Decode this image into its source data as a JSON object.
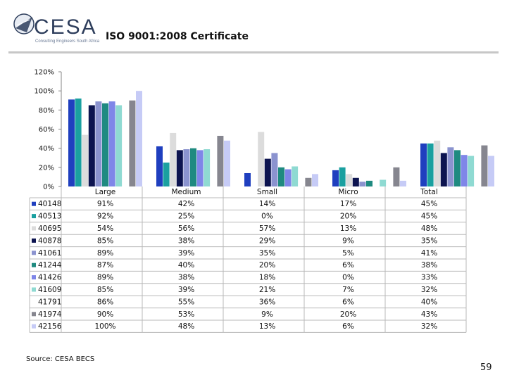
{
  "header": {
    "logo_text": "CESA",
    "logo_subtext": "Consulting Engineers South Africa",
    "title": "ISO 9001:2008 Certificate"
  },
  "footer": {
    "source": "Source: CESA BECS",
    "page_number": "59"
  },
  "chart_data": {
    "type": "bar",
    "title": "ISO 9001:2008 Certificate",
    "categories": [
      "Large",
      "Medium",
      "Small",
      "Micro",
      "Total"
    ],
    "ylim": [
      0,
      120
    ],
    "yticks": [
      "0%",
      "20%",
      "40%",
      "60%",
      "80%",
      "100%",
      "120%"
    ],
    "ytick_values": [
      0,
      20,
      40,
      60,
      80,
      100,
      120
    ],
    "grid": false,
    "legend_position": "table-left",
    "series": [
      {
        "name": "40148",
        "color": "#1f3fbf",
        "values": [
          91,
          42,
          14,
          17,
          45
        ],
        "labels": [
          "91%",
          "42%",
          "14%",
          "17%",
          "45%"
        ]
      },
      {
        "name": "40513",
        "color": "#1aa0a0",
        "values": [
          92,
          25,
          0,
          20,
          45
        ],
        "labels": [
          "92%",
          "25%",
          "0%",
          "20%",
          "45%"
        ]
      },
      {
        "name": "40695",
        "color": "#dcdcdc",
        "values": [
          54,
          56,
          57,
          13,
          48
        ],
        "labels": [
          "54%",
          "56%",
          "57%",
          "13%",
          "48%"
        ]
      },
      {
        "name": "40878",
        "color": "#0d1450",
        "values": [
          85,
          38,
          29,
          9,
          35
        ],
        "labels": [
          "85%",
          "38%",
          "29%",
          "9%",
          "35%"
        ]
      },
      {
        "name": "41061",
        "color": "#8b93cf",
        "values": [
          89,
          39,
          35,
          5,
          41
        ],
        "labels": [
          "89%",
          "39%",
          "35%",
          "5%",
          "41%"
        ]
      },
      {
        "name": "41244",
        "color": "#1f8a80",
        "values": [
          87,
          40,
          20,
          6,
          38
        ],
        "labels": [
          "87%",
          "40%",
          "20%",
          "6%",
          "38%"
        ]
      },
      {
        "name": "41426",
        "color": "#7f86e8",
        "values": [
          89,
          38,
          18,
          0,
          33
        ],
        "labels": [
          "89%",
          "38%",
          "18%",
          "0%",
          "33%"
        ]
      },
      {
        "name": "41609",
        "color": "#8fdad2",
        "values": [
          85,
          39,
          21,
          7,
          32
        ],
        "labels": [
          "85%",
          "39%",
          "21%",
          "7%",
          "32%"
        ]
      },
      {
        "name": "41791",
        "color": "#ffffff",
        "values": [
          86,
          55,
          36,
          6,
          40
        ],
        "labels": [
          "86%",
          "55%",
          "36%",
          "6%",
          "40%"
        ]
      },
      {
        "name": "41974",
        "color": "#86868f",
        "values": [
          90,
          53,
          9,
          20,
          43
        ],
        "labels": [
          "90%",
          "53%",
          "9%",
          "20%",
          "43%"
        ]
      },
      {
        "name": "42156",
        "color": "#c6cbf6",
        "values": [
          100,
          48,
          13,
          6,
          32
        ],
        "labels": [
          "100%",
          "48%",
          "13%",
          "6%",
          "32%"
        ]
      }
    ]
  }
}
